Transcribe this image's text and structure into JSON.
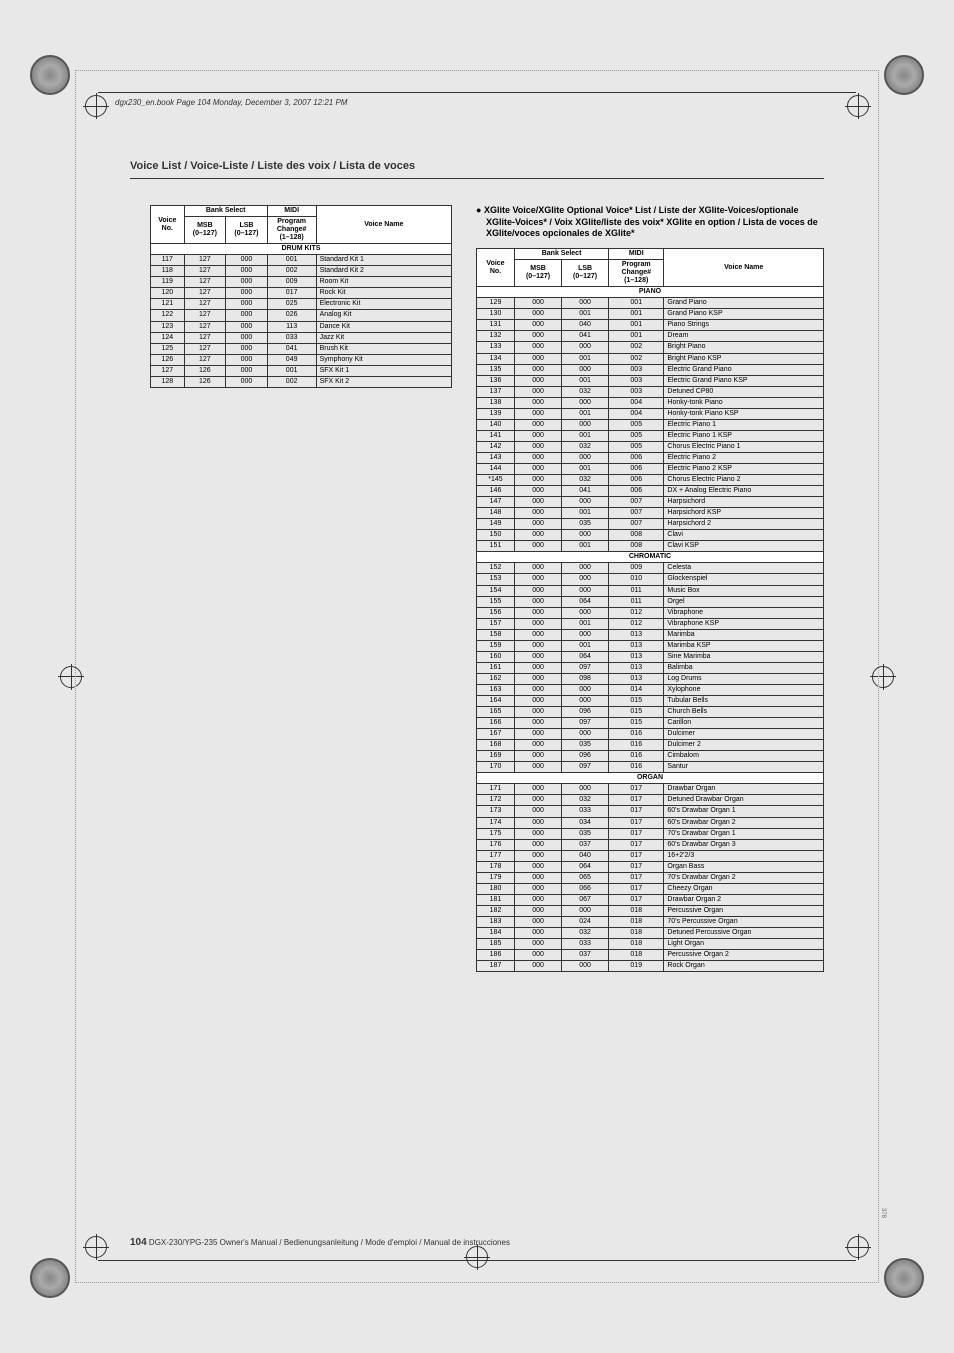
{
  "print": {
    "header": "dgx230_en.book  Page 104  Monday, December 3, 2007  12:21 PM"
  },
  "page": {
    "title": "Voice List / Voice-Liste / Liste des voix / Lista de voces",
    "footer_num": "104",
    "footer_text": "DGX-230/YPG-235  Owner's Manual / Bedienungsanleitung / Mode d'emploi / Manual de instrucciones",
    "side_marker": "378"
  },
  "left_table": {
    "headers": {
      "voice_no": "Voice\nNo.",
      "bank_select": "Bank Select",
      "msb": "MSB\n(0–127)",
      "lsb": "LSB\n(0–127)",
      "midi": "MIDI",
      "program": "Program\nChange#\n(1–128)",
      "voice_name": "Voice Name"
    },
    "section": "DRUM KITS",
    "rows": [
      [
        "117",
        "127",
        "000",
        "001",
        "Standard Kit 1"
      ],
      [
        "118",
        "127",
        "000",
        "002",
        "Standard Kit 2"
      ],
      [
        "119",
        "127",
        "000",
        "009",
        "Room Kit"
      ],
      [
        "120",
        "127",
        "000",
        "017",
        "Rock Kit"
      ],
      [
        "121",
        "127",
        "000",
        "025",
        "Electronic Kit"
      ],
      [
        "122",
        "127",
        "000",
        "026",
        "Analog Kit"
      ],
      [
        "123",
        "127",
        "000",
        "113",
        "Dance Kit"
      ],
      [
        "124",
        "127",
        "000",
        "033",
        "Jazz Kit"
      ],
      [
        "125",
        "127",
        "000",
        "041",
        "Brush Kit"
      ],
      [
        "126",
        "127",
        "000",
        "049",
        "Symphony Kit"
      ],
      [
        "127",
        "126",
        "000",
        "001",
        "SFX Kit 1"
      ],
      [
        "128",
        "126",
        "000",
        "002",
        "SFX Kit 2"
      ]
    ]
  },
  "right_section": {
    "title": "XGlite Voice/XGlite Optional Voice* List / Liste der XGlite-Voices/optionale XGlite-Voices* / Voix XGlite/liste des voix* XGlite en option / Lista de voces de XGlite/voces opcionales de XGlite*",
    "headers": {
      "voice_no": "Voice\nNo.",
      "bank_select": "Bank Select",
      "msb": "MSB\n(0–127)",
      "lsb": "LSB\n(0–127)",
      "midi": "MIDI",
      "program": "Program\nChange#\n(1–128)",
      "voice_name": "Voice Name"
    },
    "groups": [
      {
        "name": "PIANO",
        "rows": [
          [
            "129",
            "000",
            "000",
            "001",
            "Grand Piano"
          ],
          [
            "130",
            "000",
            "001",
            "001",
            "Grand Piano KSP"
          ],
          [
            "131",
            "000",
            "040",
            "001",
            "Piano Strings"
          ],
          [
            "132",
            "000",
            "041",
            "001",
            "Dream"
          ],
          [
            "133",
            "000",
            "000",
            "002",
            "Bright Piano"
          ],
          [
            "134",
            "000",
            "001",
            "002",
            "Bright Piano KSP"
          ],
          [
            "135",
            "000",
            "000",
            "003",
            "Electric Grand Piano"
          ],
          [
            "136",
            "000",
            "001",
            "003",
            "Electric Grand Piano KSP"
          ],
          [
            "137",
            "000",
            "032",
            "003",
            "Detuned CP80"
          ],
          [
            "138",
            "000",
            "000",
            "004",
            "Honky-tonk Piano"
          ],
          [
            "139",
            "000",
            "001",
            "004",
            "Honky-tonk Piano KSP"
          ],
          [
            "140",
            "000",
            "000",
            "005",
            "Electric Piano 1"
          ],
          [
            "141",
            "000",
            "001",
            "005",
            "Electric Piano 1 KSP"
          ],
          [
            "142",
            "000",
            "032",
            "005",
            "Chorus Electric Piano 1"
          ],
          [
            "143",
            "000",
            "000",
            "006",
            "Electric Piano 2"
          ],
          [
            "144",
            "000",
            "001",
            "006",
            "Electric Piano 2 KSP"
          ],
          [
            "*145",
            "000",
            "032",
            "006",
            "Chorus Electric Piano 2"
          ],
          [
            "146",
            "000",
            "041",
            "006",
            "DX + Analog Electric Piano"
          ],
          [
            "147",
            "000",
            "000",
            "007",
            "Harpsichord"
          ],
          [
            "148",
            "000",
            "001",
            "007",
            "Harpsichord KSP"
          ],
          [
            "149",
            "000",
            "035",
            "007",
            "Harpsichord 2"
          ],
          [
            "150",
            "000",
            "000",
            "008",
            "Clavi"
          ],
          [
            "151",
            "000",
            "001",
            "008",
            "Clavi KSP"
          ]
        ]
      },
      {
        "name": "CHROMATIC",
        "rows": [
          [
            "152",
            "000",
            "000",
            "009",
            "Celesta"
          ],
          [
            "153",
            "000",
            "000",
            "010",
            "Glockenspiel"
          ],
          [
            "154",
            "000",
            "000",
            "011",
            "Music Box"
          ],
          [
            "155",
            "000",
            "064",
            "011",
            "Orgel"
          ],
          [
            "156",
            "000",
            "000",
            "012",
            "Vibraphone"
          ],
          [
            "157",
            "000",
            "001",
            "012",
            "Vibraphone KSP"
          ],
          [
            "158",
            "000",
            "000",
            "013",
            "Marimba"
          ],
          [
            "159",
            "000",
            "001",
            "013",
            "Marimba KSP"
          ],
          [
            "160",
            "000",
            "064",
            "013",
            "Sine Marimba"
          ],
          [
            "161",
            "000",
            "097",
            "013",
            "Balimba"
          ],
          [
            "162",
            "000",
            "098",
            "013",
            "Log Drums"
          ],
          [
            "163",
            "000",
            "000",
            "014",
            "Xylophone"
          ],
          [
            "164",
            "000",
            "000",
            "015",
            "Tubular Bells"
          ],
          [
            "165",
            "000",
            "096",
            "015",
            "Church Bells"
          ],
          [
            "166",
            "000",
            "097",
            "015",
            "Carillon"
          ],
          [
            "167",
            "000",
            "000",
            "016",
            "Dulcimer"
          ],
          [
            "168",
            "000",
            "035",
            "016",
            "Dulcimer 2"
          ],
          [
            "169",
            "000",
            "096",
            "016",
            "Cimbalom"
          ],
          [
            "170",
            "000",
            "097",
            "016",
            "Santur"
          ]
        ]
      },
      {
        "name": "ORGAN",
        "rows": [
          [
            "171",
            "000",
            "000",
            "017",
            "Drawbar Organ"
          ],
          [
            "172",
            "000",
            "032",
            "017",
            "Detuned Drawbar Organ"
          ],
          [
            "173",
            "000",
            "033",
            "017",
            "60's Drawbar Organ 1"
          ],
          [
            "174",
            "000",
            "034",
            "017",
            "60's Drawbar Organ 2"
          ],
          [
            "175",
            "000",
            "035",
            "017",
            "70's Drawbar Organ 1"
          ],
          [
            "176",
            "000",
            "037",
            "017",
            "60's Drawbar Organ 3"
          ],
          [
            "177",
            "000",
            "040",
            "017",
            "16+2'2/3"
          ],
          [
            "178",
            "000",
            "064",
            "017",
            "Organ Bass"
          ],
          [
            "179",
            "000",
            "065",
            "017",
            "70's Drawbar Organ 2"
          ],
          [
            "180",
            "000",
            "066",
            "017",
            "Cheezy Organ"
          ],
          [
            "181",
            "000",
            "067",
            "017",
            "Drawbar Organ 2"
          ],
          [
            "182",
            "000",
            "000",
            "018",
            "Percussive Organ"
          ],
          [
            "183",
            "000",
            "024",
            "018",
            "70's Percussive Organ"
          ],
          [
            "184",
            "000",
            "032",
            "018",
            "Detuned Percussive Organ"
          ],
          [
            "185",
            "000",
            "033",
            "018",
            "Light Organ"
          ],
          [
            "186",
            "000",
            "037",
            "018",
            "Percussive Organ 2"
          ],
          [
            "187",
            "000",
            "000",
            "019",
            "Rock Organ"
          ]
        ]
      }
    ]
  }
}
